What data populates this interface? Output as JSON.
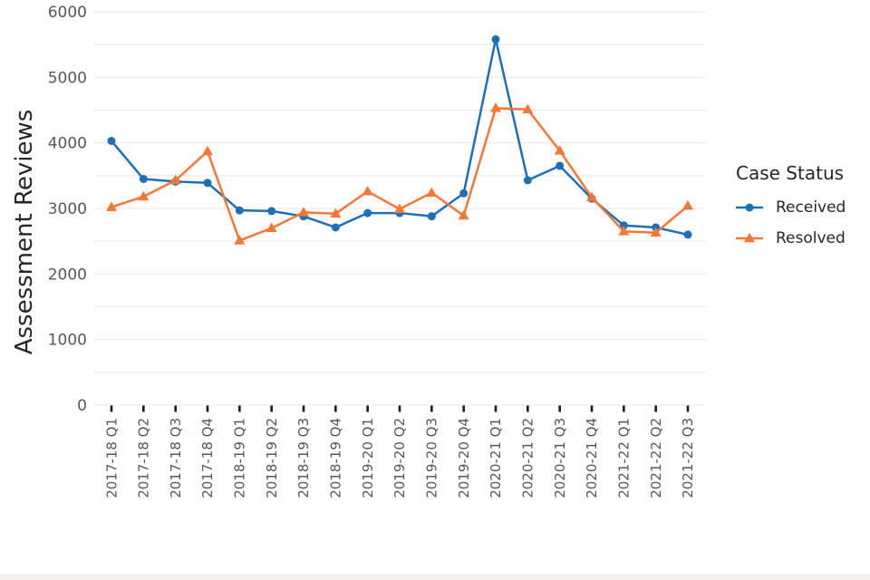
{
  "figure": {
    "background": "#ffffff",
    "footer_bar_color": "#f3f2f1"
  },
  "chart_data": {
    "type": "line",
    "title": "",
    "xlabel": "",
    "ylabel": "Assessment Reviews",
    "ylim": [
      0,
      6000
    ],
    "yticks": [
      0,
      1000,
      2000,
      3000,
      4000,
      5000,
      6000
    ],
    "grid": true,
    "grid_interval": 500,
    "legend_title": "Case Status",
    "legend_position": "right",
    "categories": [
      "2017-18 Q1",
      "2017-18 Q2",
      "2017-18 Q3",
      "2017-18 Q4",
      "2018-19 Q1",
      "2018-19 Q2",
      "2018-19 Q3",
      "2018-19 Q4",
      "2019-20 Q1",
      "2019-20 Q2",
      "2019-20 Q3",
      "2019-20 Q4",
      "2020-21 Q1",
      "2020-21 Q2",
      "2020-21 Q3",
      "2020-21 Q4",
      "2021-22 Q1",
      "2021-22 Q2",
      "2021-22 Q3"
    ],
    "series": [
      {
        "name": "Received",
        "marker": "circle",
        "color": "#1d70b8",
        "values": [
          4030,
          3450,
          3410,
          3390,
          2970,
          2960,
          2880,
          2710,
          2930,
          2930,
          2880,
          3230,
          5580,
          3430,
          3650,
          3150,
          2740,
          2710,
          2600
        ]
      },
      {
        "name": "Resolved",
        "marker": "triangle",
        "color": "#f47738",
        "values": [
          3020,
          3180,
          3430,
          3870,
          2510,
          2700,
          2940,
          2920,
          3260,
          2990,
          3240,
          2890,
          4530,
          4510,
          3880,
          3170,
          2650,
          2630,
          3040
        ]
      }
    ],
    "styles": {
      "grid_color": "#e7e7e7",
      "tick_mark_color": "#1a1a1a",
      "tick_label_color": "#575757",
      "axis_title_color": "#262626",
      "legend_text_color": "#262626"
    }
  }
}
